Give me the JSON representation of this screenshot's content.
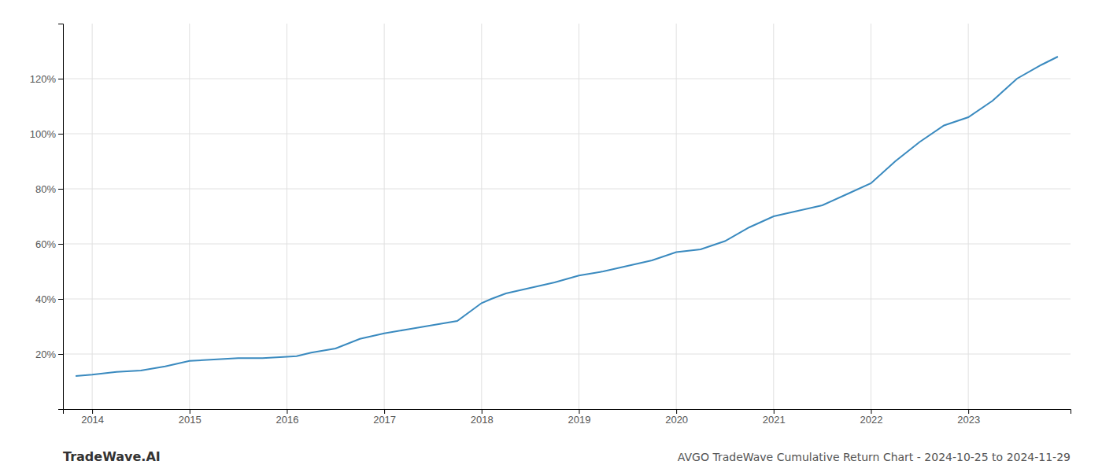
{
  "chart_data": {
    "type": "line",
    "title": "AVGO TradeWave Cumulative Return Chart - 2024-10-25 to 2024-11-29",
    "annotations": [
      "TradeWave.AI"
    ],
    "x": [
      2013.83,
      2014.0,
      2014.25,
      2014.5,
      2014.75,
      2015.0,
      2015.25,
      2015.5,
      2015.75,
      2016.0,
      2016.1,
      2016.25,
      2016.5,
      2016.75,
      2017.0,
      2017.25,
      2017.5,
      2017.75,
      2018.0,
      2018.1,
      2018.25,
      2018.5,
      2018.75,
      2019.0,
      2019.25,
      2019.5,
      2019.75,
      2020.0,
      2020.25,
      2020.5,
      2020.75,
      2021.0,
      2021.25,
      2021.5,
      2021.75,
      2022.0,
      2022.25,
      2022.5,
      2022.75,
      2023.0,
      2023.25,
      2023.5,
      2023.75,
      2023.92
    ],
    "values": [
      12.0,
      12.5,
      13.5,
      14.0,
      15.5,
      17.5,
      18.0,
      18.5,
      18.5,
      19.0,
      19.2,
      20.5,
      22.0,
      25.5,
      27.5,
      29.0,
      30.5,
      32.0,
      38.5,
      40.0,
      42.0,
      44.0,
      46.0,
      48.5,
      50.0,
      52.0,
      54.0,
      57.0,
      58.0,
      61.0,
      66.0,
      70.0,
      72.0,
      74.0,
      78.0,
      82.0,
      90.0,
      97.0,
      103.0,
      106.0,
      112.0,
      120.0,
      125.0,
      128.0
    ],
    "color": "#3a8abf",
    "xlim": [
      2013.7,
      2024.05
    ],
    "ylim": [
      0,
      140
    ],
    "xticks": [
      2014,
      2015,
      2016,
      2017,
      2018,
      2019,
      2020,
      2021,
      2022,
      2023
    ],
    "yticks": [
      {
        "value": 20,
        "label": "20%"
      },
      {
        "value": 40,
        "label": "40%"
      },
      {
        "value": 60,
        "label": "60%"
      },
      {
        "value": 80,
        "label": "80%"
      },
      {
        "value": 100,
        "label": "100%"
      },
      {
        "value": 120,
        "label": "120%"
      }
    ],
    "grid": true
  }
}
